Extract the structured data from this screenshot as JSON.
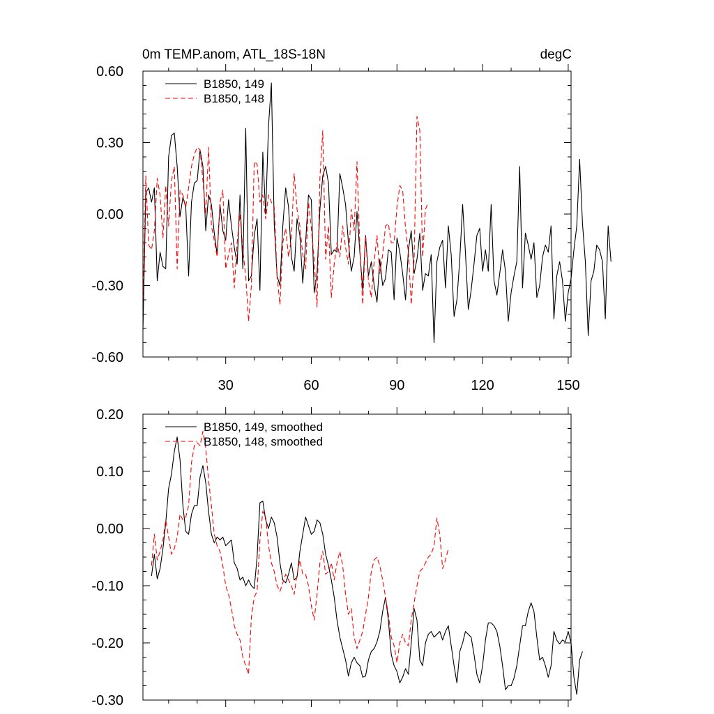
{
  "chart_data": [
    {
      "type": "line",
      "title": "0m TEMP.anom, ATL_18S-18N",
      "units": "degC",
      "xlabel": "",
      "ylabel": "",
      "xlim": [
        1,
        151
      ],
      "ylim": [
        -0.6,
        0.6
      ],
      "x_ticks": [
        30,
        60,
        90,
        120,
        150
      ],
      "x_tick_labels": [
        "30",
        "60",
        "90",
        "120",
        "150"
      ],
      "y_ticks": [
        -0.6,
        -0.3,
        0.0,
        0.3,
        0.6
      ],
      "y_tick_labels": [
        "-0.60",
        "-0.30",
        "0.00",
        "0.30",
        "0.60"
      ],
      "legend_position": "top-left",
      "series": [
        {
          "name": "B1850, 149",
          "color": "#000000",
          "dash": "solid",
          "x_start": 1,
          "values": [
            -0.49,
            0.09,
            0.11,
            0.05,
            0.11,
            -0.28,
            -0.16,
            -0.22,
            -0.23,
            0.24,
            0.33,
            0.34,
            0.2,
            -0.01,
            0.07,
            0.03,
            -0.26,
            0.05,
            0.13,
            0.14,
            0.27,
            0.2,
            -0.07,
            0.08,
            0.04,
            -0.08,
            -0.17,
            0.04,
            -0.07,
            -0.11,
            0.06,
            -0.05,
            -0.14,
            -0.21,
            0.08,
            -0.23,
            0.36,
            -0.28,
            -0.26,
            -0.09,
            -0.02,
            -0.32,
            0.26,
            0.0,
            0.37,
            0.55,
            -0.04,
            -0.26,
            -0.3,
            -0.05,
            0.11,
            0.03,
            -0.18,
            -0.24,
            -0.02,
            -0.09,
            -0.29,
            -0.12,
            0.08,
            0.06,
            -0.33,
            -0.25,
            0.02,
            0.16,
            0.2,
            0.13,
            -0.17,
            -0.15,
            -0.16,
            0.17,
            0.11,
            0.04,
            -0.12,
            -0.24,
            -0.18,
            0.01,
            -0.16,
            -0.32,
            -0.09,
            -0.26,
            -0.2,
            -0.3,
            -0.37,
            -0.19,
            -0.3,
            -0.27,
            -0.15,
            -0.16,
            -0.36,
            -0.1,
            -0.16,
            -0.25,
            -0.36,
            -0.15,
            -0.07,
            -0.25,
            -0.19,
            -0.08,
            -0.32,
            -0.25,
            -0.26,
            -0.17,
            -0.54,
            -0.2,
            -0.14,
            -0.11,
            -0.31,
            -0.05,
            -0.17,
            -0.43,
            -0.36,
            -0.19,
            0.04,
            -0.16,
            -0.4,
            -0.32,
            -0.21,
            -0.09,
            -0.06,
            -0.24,
            -0.15,
            -0.24,
            0.04,
            -0.28,
            -0.34,
            -0.25,
            -0.15,
            -0.24,
            -0.45,
            -0.33,
            -0.26,
            -0.2,
            0.2,
            -0.31,
            -0.08,
            -0.13,
            -0.19,
            -0.12,
            -0.35,
            -0.3,
            -0.18,
            -0.13,
            -0.16,
            -0.05,
            -0.44,
            -0.26,
            -0.2,
            -0.28,
            -0.45,
            -0.33,
            -0.27,
            -0.15,
            -0.05,
            0.23,
            -0.04,
            -0.2,
            -0.51,
            -0.28,
            -0.24,
            -0.13,
            -0.15,
            -0.2,
            -0.44,
            -0.05,
            -0.2
          ]
        },
        {
          "name": "B1850, 148",
          "color": "#ff0000",
          "dash": "dashed",
          "x_start": 1,
          "values": [
            -0.39,
            0.16,
            -0.13,
            -0.15,
            -0.07,
            0.15,
            0.08,
            -0.1,
            0.12,
            -0.05,
            0.14,
            0.2,
            -0.23,
            0.1,
            0.08,
            0.03,
            0.11,
            0.2,
            0.25,
            0.28,
            0.27,
            0.14,
            0.0,
            0.28,
            -0.05,
            -0.11,
            -0.18,
            0.05,
            0.1,
            -0.23,
            -0.17,
            -0.12,
            -0.31,
            -0.12,
            0.0,
            -0.15,
            -0.26,
            -0.45,
            -0.3,
            0.22,
            0.21,
            0.05,
            0.08,
            -0.02,
            0.08,
            0.05,
            0.03,
            -0.26,
            -0.38,
            -0.12,
            -0.06,
            -0.18,
            -0.1,
            0.17,
            0.02,
            -0.05,
            -0.17,
            -0.23,
            0.05,
            -0.06,
            -0.19,
            -0.39,
            0.15,
            0.35,
            -0.19,
            -0.05,
            -0.35,
            -0.21,
            -0.12,
            -0.18,
            -0.05,
            -0.14,
            -0.21,
            0.02,
            -0.07,
            0.22,
            -0.14,
            -0.38,
            -0.09,
            -0.28,
            -0.35,
            -0.2,
            -0.09,
            -0.25,
            -0.17,
            -0.05,
            -0.04,
            -0.12,
            -0.12,
            0.03,
            0.12,
            0.1,
            -0.06,
            -0.16,
            -0.38,
            -0.19,
            0.41,
            0.35,
            -0.18,
            0.02,
            0.05
          ]
        }
      ]
    },
    {
      "type": "line",
      "title": "",
      "xlabel": "",
      "ylabel": "",
      "xlim": [
        1,
        151
      ],
      "ylim": [
        -0.3,
        0.2
      ],
      "x_ticks": [
        30,
        60,
        90,
        120,
        150
      ],
      "x_tick_labels": [],
      "y_ticks": [
        -0.3,
        -0.2,
        -0.1,
        0.0,
        0.1,
        0.2
      ],
      "y_tick_labels": [
        "-0.30",
        "-0.20",
        "-0.10",
        "0.00",
        "0.10",
        "0.20"
      ],
      "legend_position": "top-left",
      "series": [
        {
          "name": "B1850, 149, smoothed",
          "color": "#000000",
          "dash": "solid",
          "x_start": 4,
          "values": [
            -0.083,
            -0.045,
            -0.088,
            -0.07,
            -0.035,
            0.01,
            0.07,
            0.095,
            0.135,
            0.16,
            0.12,
            0.04,
            -0.005,
            -0.01,
            0.025,
            0.04,
            0.04,
            0.09,
            0.11,
            0.08,
            0.03,
            -0.01,
            -0.025,
            -0.015,
            -0.02,
            -0.015,
            -0.03,
            -0.025,
            -0.02,
            -0.06,
            -0.07,
            -0.09,
            -0.085,
            -0.1,
            -0.09,
            -0.1,
            -0.105,
            -0.05,
            0.045,
            0.048,
            0.015,
            0.0,
            0.02,
            0.01,
            -0.015,
            -0.06,
            -0.09,
            -0.095,
            -0.08,
            -0.06,
            -0.09,
            -0.085,
            -0.04,
            -0.01,
            0.02,
            0.005,
            -0.01,
            -0.005,
            0.015,
            0.01,
            -0.01,
            -0.045,
            -0.065,
            -0.09,
            -0.12,
            -0.16,
            -0.19,
            -0.21,
            -0.23,
            -0.258,
            -0.235,
            -0.225,
            -0.235,
            -0.24,
            -0.26,
            -0.258,
            -0.23,
            -0.215,
            -0.21,
            -0.198,
            -0.18,
            -0.145,
            -0.12,
            -0.16,
            -0.22,
            -0.24,
            -0.25,
            -0.27,
            -0.26,
            -0.245,
            -0.255,
            -0.2,
            -0.14,
            -0.16,
            -0.23,
            -0.24,
            -0.2,
            -0.185,
            -0.18,
            -0.19,
            -0.185,
            -0.18,
            -0.195,
            -0.18,
            -0.17,
            -0.205,
            -0.24,
            -0.27,
            -0.215,
            -0.2,
            -0.18,
            -0.185,
            -0.19,
            -0.22,
            -0.255,
            -0.27,
            -0.24,
            -0.195,
            -0.165,
            -0.165,
            -0.17,
            -0.18,
            -0.205,
            -0.24,
            -0.282,
            -0.275,
            -0.275,
            -0.262,
            -0.24,
            -0.205,
            -0.17,
            -0.17,
            -0.145,
            -0.13,
            -0.145,
            -0.19,
            -0.23,
            -0.225,
            -0.24,
            -0.26,
            -0.24,
            -0.18,
            -0.195,
            -0.202,
            -0.195,
            -0.198,
            -0.18,
            -0.2,
            -0.26,
            -0.29,
            -0.23,
            -0.215
          ]
        },
        {
          "name": "B1850, 148, smoothed",
          "color": "#ff0000",
          "dash": "dashed",
          "x_start": 4,
          "values": [
            -0.065,
            -0.01,
            -0.055,
            -0.04,
            -0.02,
            0.015,
            -0.015,
            -0.045,
            -0.035,
            -0.015,
            0.025,
            0.015,
            0.02,
            0.04,
            0.115,
            0.145,
            0.15,
            0.145,
            0.17,
            0.14,
            0.085,
            0.04,
            -0.01,
            -0.03,
            -0.04,
            -0.065,
            -0.1,
            -0.115,
            -0.14,
            -0.17,
            -0.185,
            -0.195,
            -0.225,
            -0.24,
            -0.255,
            -0.155,
            -0.12,
            -0.11,
            -0.02,
            0.03,
            0.02,
            -0.03,
            -0.06,
            -0.075,
            -0.1,
            -0.11,
            -0.095,
            -0.08,
            -0.09,
            -0.1,
            -0.115,
            -0.08,
            -0.055,
            -0.08,
            -0.08,
            -0.1,
            -0.135,
            -0.16,
            -0.115,
            -0.06,
            -0.04,
            -0.08,
            -0.075,
            -0.06,
            -0.09,
            -0.06,
            -0.04,
            -0.065,
            -0.115,
            -0.15,
            -0.14,
            -0.19,
            -0.21,
            -0.195,
            -0.18,
            -0.15,
            -0.12,
            -0.075,
            -0.055,
            -0.05,
            -0.065,
            -0.09,
            -0.12,
            -0.15,
            -0.19,
            -0.205,
            -0.235,
            -0.2,
            -0.185,
            -0.2,
            -0.205,
            -0.16,
            -0.13,
            -0.1,
            -0.075,
            -0.07,
            -0.06,
            -0.05,
            -0.045,
            -0.03,
            0.018,
            -0.01,
            -0.07,
            -0.055,
            -0.035
          ]
        }
      ]
    }
  ]
}
